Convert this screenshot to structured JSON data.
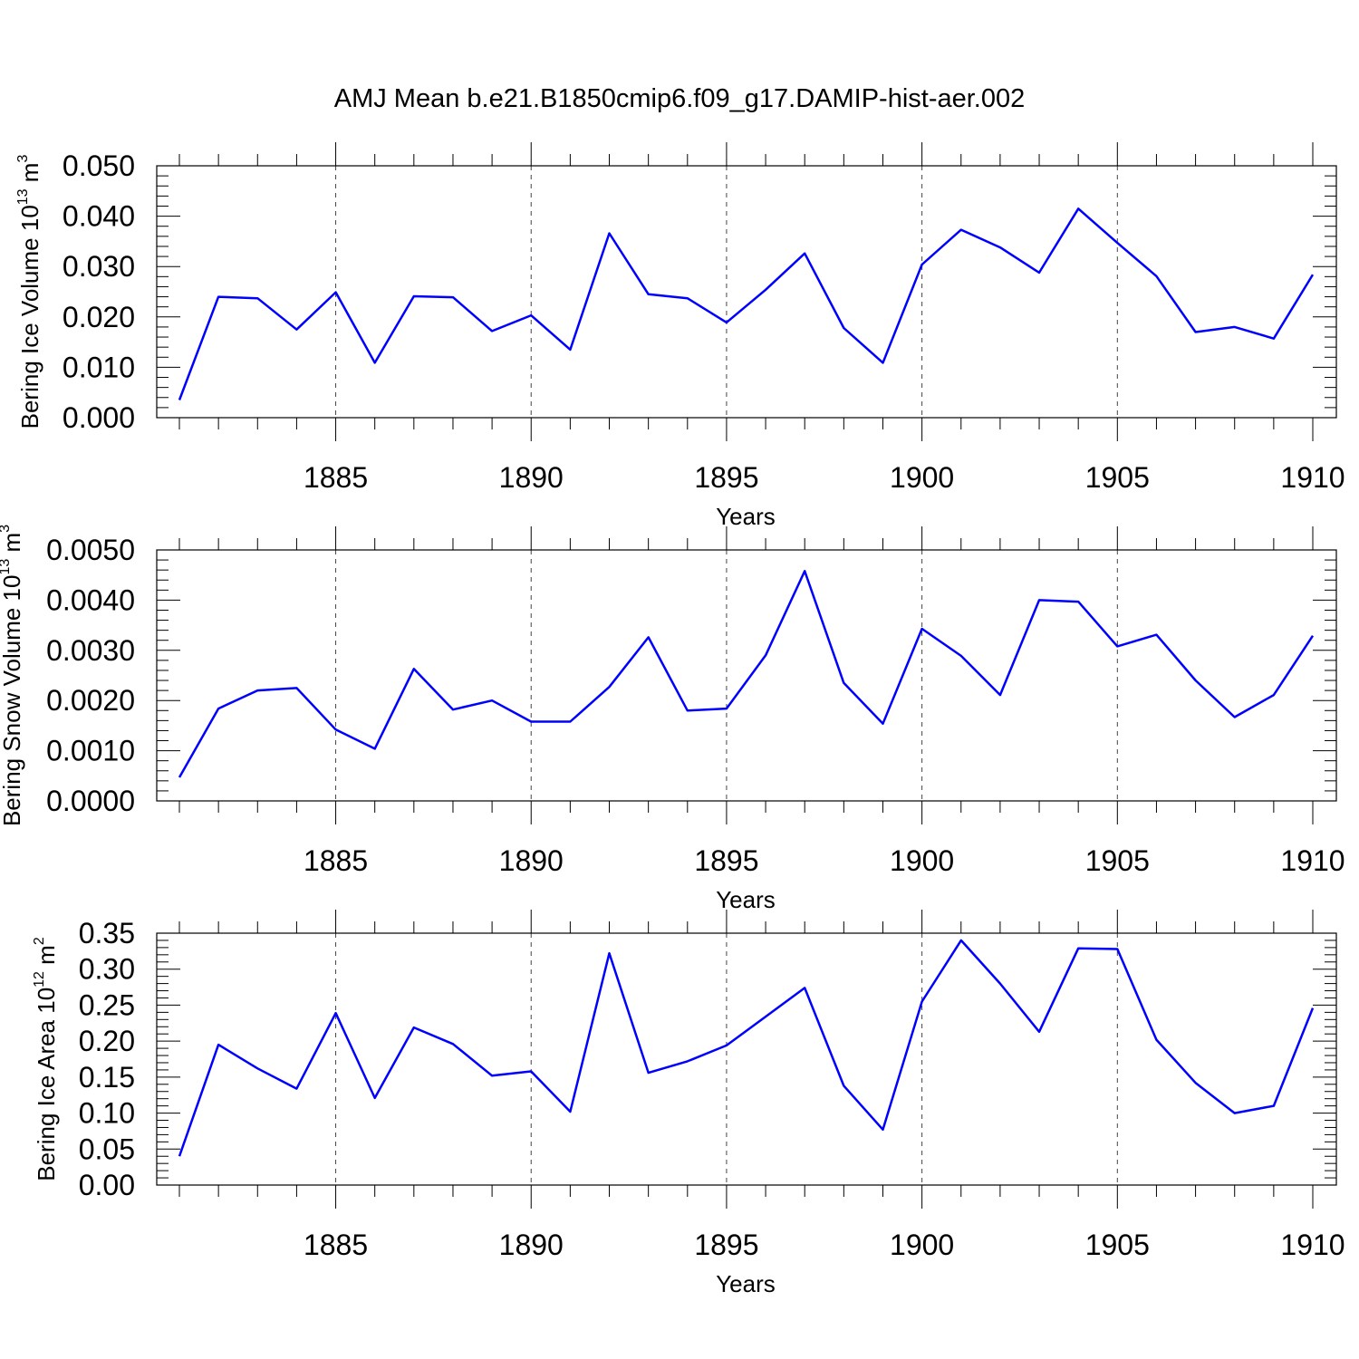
{
  "title": "AMJ Mean b.e21.B1850cmip6.f09_g17.DAMIP-hist-aer.002",
  "colors": {
    "series": "#0000ff",
    "grid": "#444444",
    "axis": "#000000"
  },
  "chart_data": [
    {
      "type": "line",
      "ylabel_main": "Bering Ice Volume 10",
      "ylabel_exp": "13",
      "ylabel_unit": " m",
      "ylabel_unit_exp": "3",
      "xlabel": "Years",
      "xlim": [
        1881,
        1910
      ],
      "ylim": [
        0,
        0.05
      ],
      "yticks": [
        "0.000",
        "0.010",
        "0.020",
        "0.030",
        "0.040",
        "0.050"
      ],
      "yticks_values": [
        0,
        0.01,
        0.02,
        0.03,
        0.04,
        0.05
      ],
      "xticks": [
        "1885",
        "1890",
        "1895",
        "1900",
        "1905",
        "1910"
      ],
      "xticks_values": [
        1885,
        1890,
        1895,
        1900,
        1905,
        1910
      ],
      "grid_x": true,
      "x": [
        1881,
        1882,
        1883,
        1884,
        1885,
        1886,
        1887,
        1888,
        1889,
        1890,
        1891,
        1892,
        1893,
        1894,
        1895,
        1896,
        1897,
        1898,
        1899,
        1900,
        1901,
        1902,
        1903,
        1904,
        1905,
        1906,
        1907,
        1908,
        1909,
        1910
      ],
      "y": [
        0.0035,
        0.024,
        0.0237,
        0.0175,
        0.0249,
        0.0109,
        0.0241,
        0.0239,
        0.0172,
        0.0203,
        0.0135,
        0.0366,
        0.0245,
        0.0237,
        0.0189,
        0.0254,
        0.0326,
        0.0178,
        0.0109,
        0.0304,
        0.0373,
        0.0338,
        0.0288,
        0.0415,
        0.0347,
        0.0281,
        0.017,
        0.018,
        0.0157,
        0.0284
      ]
    },
    {
      "type": "line",
      "ylabel_main": "Bering Snow Volume 10",
      "ylabel_exp": "13",
      "ylabel_unit": " m",
      "ylabel_unit_exp": "3",
      "xlabel": "Years",
      "xlim": [
        1881,
        1910
      ],
      "ylim": [
        0,
        0.005
      ],
      "yticks": [
        "0.0000",
        "0.0010",
        "0.0020",
        "0.0030",
        "0.0040",
        "0.0050"
      ],
      "yticks_values": [
        0,
        0.001,
        0.002,
        0.003,
        0.004,
        0.005
      ],
      "xticks": [
        "1885",
        "1890",
        "1895",
        "1900",
        "1905",
        "1910"
      ],
      "xticks_values": [
        1885,
        1890,
        1895,
        1900,
        1905,
        1910
      ],
      "grid_x": true,
      "x": [
        1881,
        1882,
        1883,
        1884,
        1885,
        1886,
        1887,
        1888,
        1889,
        1890,
        1891,
        1892,
        1893,
        1894,
        1895,
        1896,
        1897,
        1898,
        1899,
        1900,
        1901,
        1902,
        1903,
        1904,
        1905,
        1906,
        1907,
        1908,
        1909,
        1910
      ],
      "y": [
        0.00047,
        0.00184,
        0.0022,
        0.00225,
        0.00142,
        0.00104,
        0.00263,
        0.00182,
        0.002,
        0.00158,
        0.00158,
        0.00227,
        0.00326,
        0.0018,
        0.00184,
        0.0029,
        0.00458,
        0.00235,
        0.00154,
        0.00343,
        0.00289,
        0.00211,
        0.004,
        0.00397,
        0.00308,
        0.00331,
        0.0024,
        0.00167,
        0.00211,
        0.00329
      ]
    },
    {
      "type": "line",
      "ylabel_main": "Bering Ice Area 10",
      "ylabel_exp": "12",
      "ylabel_unit": " m",
      "ylabel_unit_exp": "2",
      "xlabel": "Years",
      "xlim": [
        1881,
        1910
      ],
      "ylim": [
        0,
        0.35
      ],
      "yticks": [
        "0.00",
        "0.05",
        "0.10",
        "0.15",
        "0.20",
        "0.25",
        "0.30",
        "0.35"
      ],
      "yticks_values": [
        0,
        0.05,
        0.1,
        0.15,
        0.2,
        0.25,
        0.3,
        0.35
      ],
      "xticks": [
        "1885",
        "1890",
        "1895",
        "1900",
        "1905",
        "1910"
      ],
      "xticks_values": [
        1885,
        1890,
        1895,
        1900,
        1905,
        1910
      ],
      "grid_x": true,
      "x": [
        1881,
        1882,
        1883,
        1884,
        1885,
        1886,
        1887,
        1888,
        1889,
        1890,
        1891,
        1892,
        1893,
        1894,
        1895,
        1896,
        1897,
        1898,
        1899,
        1900,
        1901,
        1902,
        1903,
        1904,
        1905,
        1906,
        1907,
        1908,
        1909,
        1910
      ],
      "y": [
        0.04,
        0.195,
        0.162,
        0.134,
        0.239,
        0.121,
        0.219,
        0.196,
        0.152,
        0.158,
        0.102,
        0.322,
        0.156,
        0.172,
        0.194,
        0.234,
        0.274,
        0.138,
        0.077,
        0.255,
        0.34,
        0.28,
        0.213,
        0.329,
        0.328,
        0.202,
        0.142,
        0.1,
        0.11,
        0.246
      ]
    }
  ]
}
